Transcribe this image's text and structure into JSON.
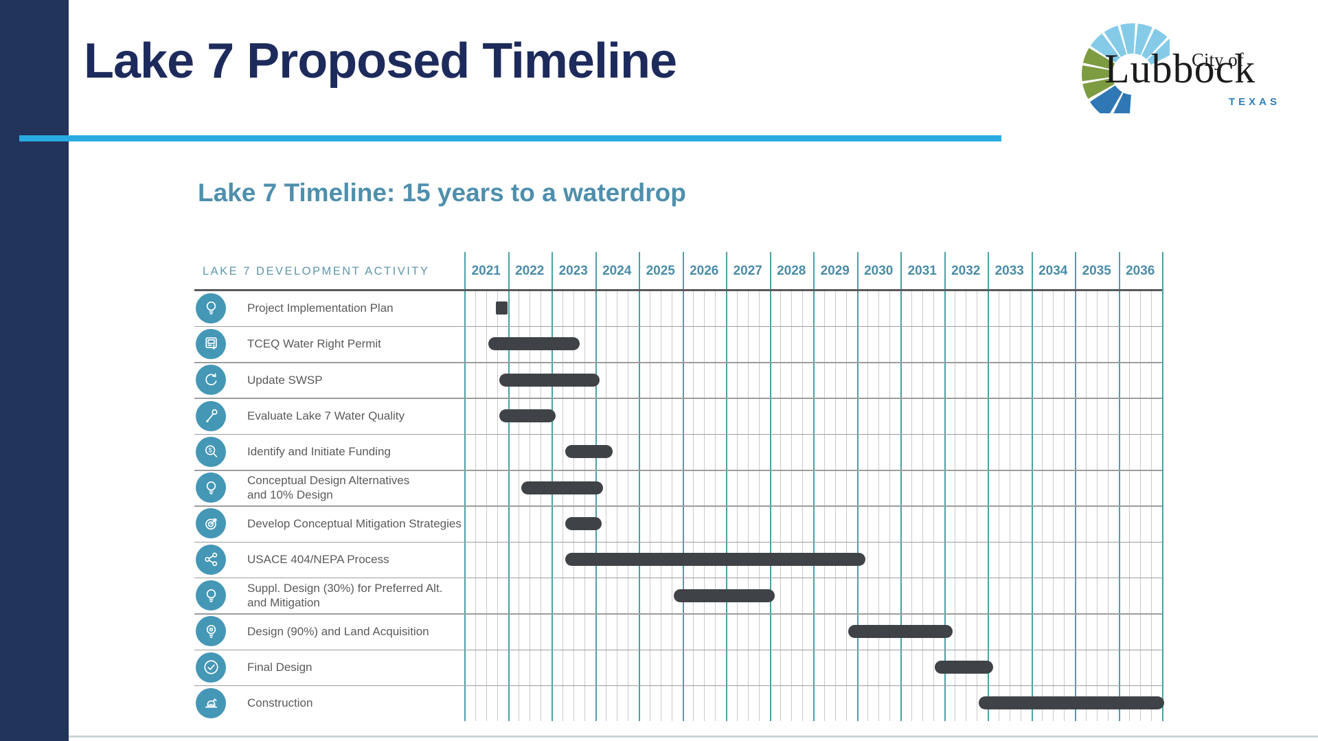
{
  "header": {
    "title": "Lake 7 Proposed Timeline"
  },
  "logo": {
    "city_of": "City of",
    "name": "Lubbock",
    "state": "TEXAS"
  },
  "subtitle": "Lake 7 Timeline: 15 years to a waterdrop",
  "chart_data": {
    "type": "bar",
    "variant": "gantt-timeline",
    "title": "Lake 7 Timeline: 15 years to a waterdrop",
    "activity_header": "LAKE 7 DEVELOPMENT ACTIVITY",
    "years": [
      "2021",
      "2022",
      "2023",
      "2024",
      "2025",
      "2026",
      "2027",
      "2028",
      "2029",
      "2030",
      "2031",
      "2032",
      "2033",
      "2034",
      "2035",
      "2036"
    ],
    "x_range": [
      2021,
      2037
    ],
    "grid": {
      "minor_divisions_per_year": 4,
      "legend": "none"
    },
    "rows": [
      {
        "label": "Project Implementation Plan",
        "icon": "lightbulb-icon",
        "start": 2021.72,
        "end": 2022.0,
        "shape": "square"
      },
      {
        "label": "TCEQ Water Right Permit",
        "icon": "permit-machine-icon",
        "start": 2021.55,
        "end": 2023.65
      },
      {
        "label": "Update SWSP",
        "icon": "refresh-cycle-icon",
        "start": 2021.8,
        "end": 2024.1
      },
      {
        "label": "Evaluate Lake 7 Water Quality",
        "icon": "dropper-icon",
        "start": 2021.8,
        "end": 2023.1
      },
      {
        "label": "Identify and Initiate Funding",
        "icon": "search-dollar-icon",
        "start": 2023.32,
        "end": 2024.4
      },
      {
        "label": "Conceptual Design Alternatives",
        "label2": "and 10% Design",
        "icon": "lightbulb-icon",
        "start": 2022.3,
        "end": 2024.18
      },
      {
        "label": "Develop Conceptual Mitigation Strategies",
        "icon": "target-strategy-icon",
        "start": 2023.32,
        "end": 2024.15
      },
      {
        "label": "USACE 404/NEPA Process",
        "icon": "share-network-icon",
        "start": 2023.32,
        "end": 2030.2
      },
      {
        "label": "Suppl. Design (30%) for Preferred Alt.",
        "label2": "and Mitigation",
        "icon": "lightbulb-icon",
        "start": 2025.8,
        "end": 2028.12
      },
      {
        "label": "Design (90%) and Land Acquisition",
        "icon": "lightbulb-gear-icon",
        "start": 2029.8,
        "end": 2032.2
      },
      {
        "label": "Final Design",
        "icon": "check-circle-icon",
        "start": 2031.78,
        "end": 2033.12
      },
      {
        "label": "Construction",
        "icon": "dam-construction-icon",
        "start": 2032.8,
        "end": 2037.05
      }
    ]
  },
  "colors": {
    "sidebar_navy": "#22345a",
    "title_navy": "#1d2b5c",
    "accent_cyan": "#29abe2",
    "heading_teal": "#4e8fac",
    "year_text_teal": "#4a8ca8",
    "grid_year_line": "#4aa0a6",
    "grid_minor_line": "#c9c9c9",
    "row_separator": "#9c9c9c",
    "header_separator": "#57585a",
    "bar_charcoal": "#3f4347",
    "icon_circle_teal": "#4597b6",
    "label_gray": "#595a5c",
    "logo_light_blue": "#85cbe8",
    "logo_green": "#7d9c42",
    "logo_dark_blue": "#2f78b5",
    "logo_texas_blue": "#2e7db6"
  }
}
